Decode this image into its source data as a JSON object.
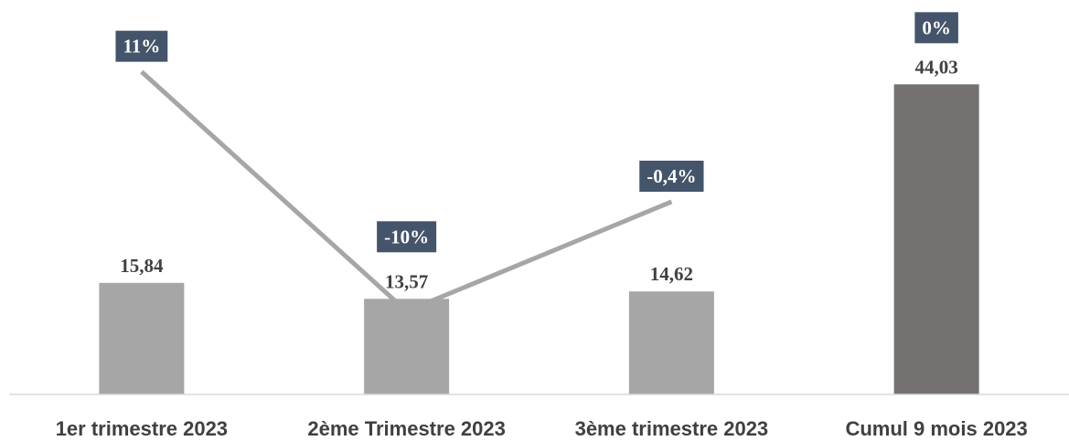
{
  "chart_data": {
    "type": "bar",
    "categories": [
      "1er trimestre 2023",
      "2ème Trimestre 2023",
      "3ème trimestre 2023",
      "Cumul 9 mois 2023"
    ],
    "values": [
      15.84,
      13.57,
      14.62,
      44.03
    ],
    "value_labels": [
      "15,84",
      "13,57",
      "14,62",
      "44,03"
    ],
    "colors": [
      "#a6a6a6",
      "#a6a6a6",
      "#a6a6a6",
      "#767171"
    ],
    "ylim": [
      0,
      56
    ],
    "series": [
      {
        "type": "line",
        "axis": "y2",
        "color": "#a6a6a6",
        "values": [
          11,
          -10,
          -0.4,
          null
        ],
        "value_labels": [
          "11%",
          "-10%",
          "-0,4%",
          null
        ]
      }
    ],
    "annotations": [
      {
        "text": "0%",
        "value": 0
      }
    ],
    "y2lim": [
      -17.3,
      17.3
    ],
    "label_box_color": "#44546a"
  }
}
